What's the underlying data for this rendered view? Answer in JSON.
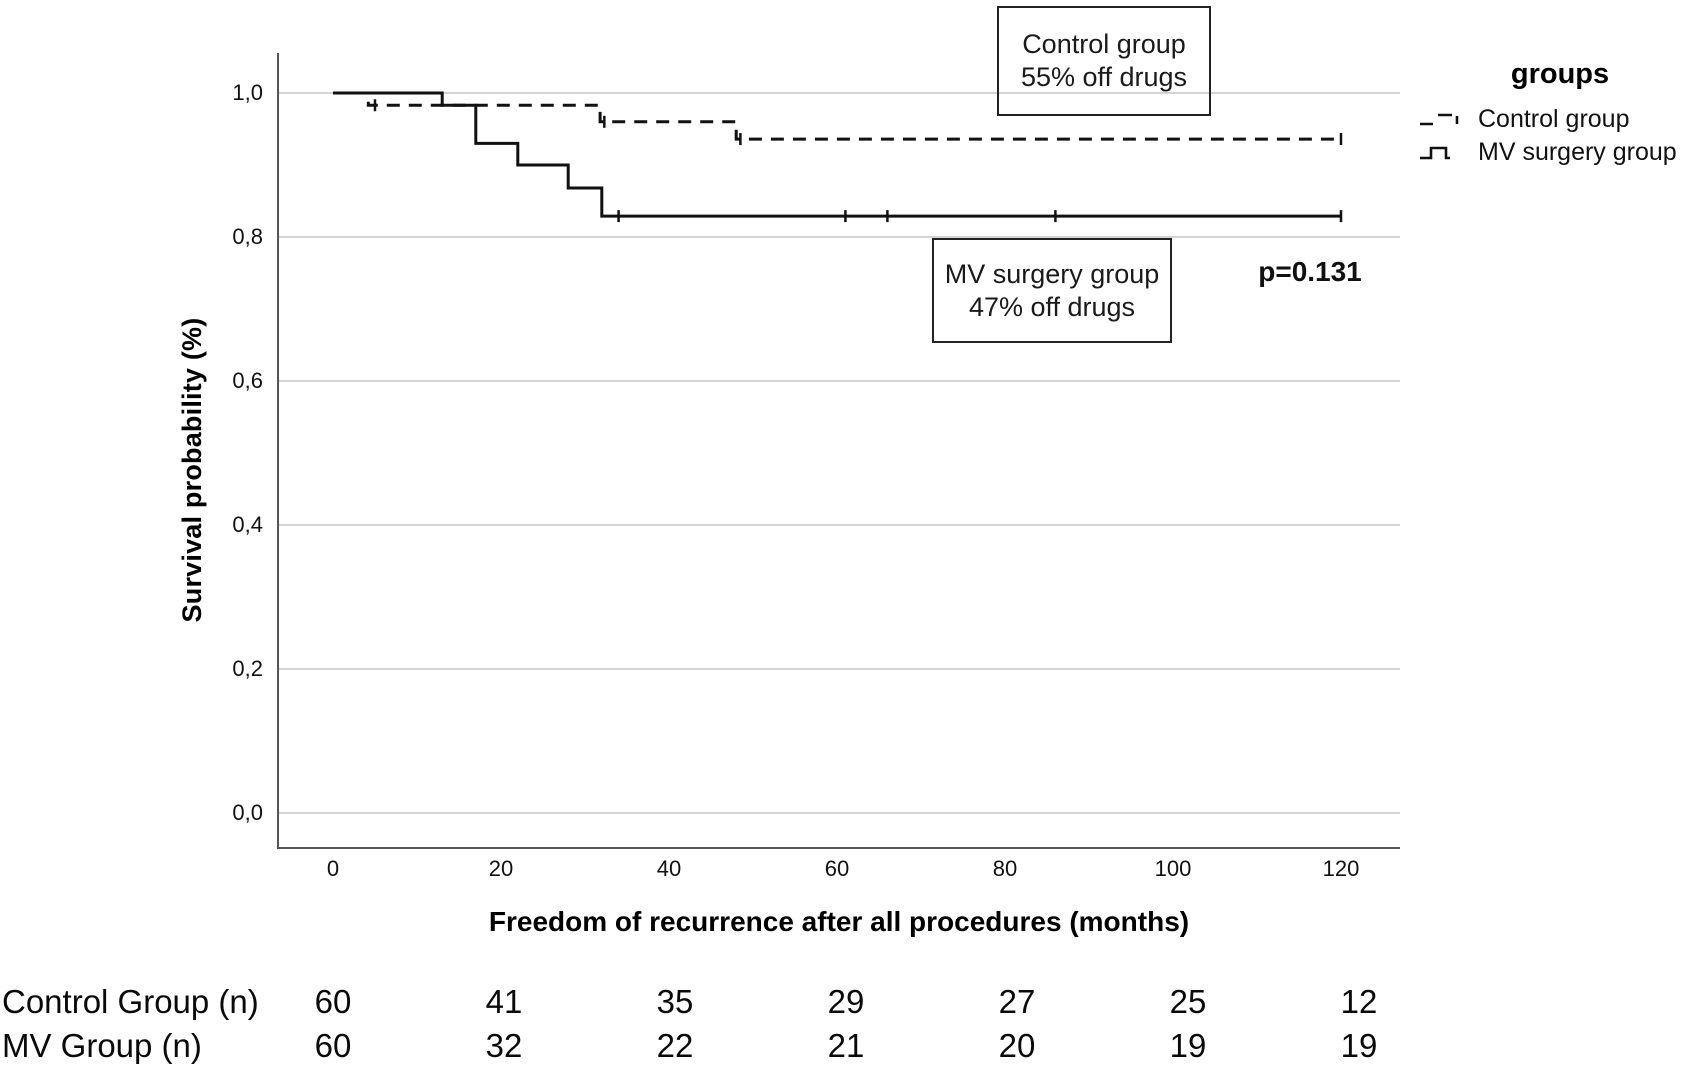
{
  "chart_data": {
    "type": "line",
    "subtype": "kaplan-meier-step",
    "title": "",
    "xlabel": "Freedom of recurrence after all procedures (months)",
    "ylabel": "Survival probability (%)",
    "xticks": [
      0,
      20,
      40,
      60,
      80,
      100,
      120
    ],
    "ytick_labels": [
      "0,0",
      "0,2",
      "0,4",
      "0,6",
      "0,8",
      "1,0"
    ],
    "ytick_values": [
      0,
      0.2,
      0.4,
      0.6,
      0.8,
      1.0
    ],
    "xlim": [
      -6.5,
      127
    ],
    "ylim": [
      -0.05,
      1.06
    ],
    "grid": true,
    "legend_position": "top-right-outside",
    "legend": {
      "title": "groups",
      "items": [
        {
          "label": "Control group",
          "line_style": "dashed"
        },
        {
          "label": "MV surgery group",
          "line_style": "solid"
        }
      ]
    },
    "series": [
      {
        "name": "Control group",
        "line_style": "dashed",
        "color": "#111111",
        "points": [
          [
            0,
            1.0
          ],
          [
            4.2,
            1.0
          ],
          [
            4.2,
            0.983
          ],
          [
            31.8,
            0.983
          ],
          [
            31.8,
            0.96
          ],
          [
            48,
            0.96
          ],
          [
            48,
            0.936
          ],
          [
            120,
            0.936
          ]
        ],
        "censor_marks": [
          [
            5,
            0.983
          ],
          [
            32.3,
            0.96
          ],
          [
            48.5,
            0.936
          ],
          [
            120,
            0.936
          ]
        ]
      },
      {
        "name": "MV surgery group",
        "line_style": "solid",
        "color": "#111111",
        "points": [
          [
            0,
            1.0
          ],
          [
            13,
            1.0
          ],
          [
            13,
            0.983
          ],
          [
            17,
            0.983
          ],
          [
            17,
            0.93
          ],
          [
            22,
            0.93
          ],
          [
            22,
            0.9
          ],
          [
            28,
            0.9
          ],
          [
            28,
            0.868
          ],
          [
            32,
            0.868
          ],
          [
            32,
            0.829
          ],
          [
            120,
            0.829
          ]
        ],
        "censor_marks": [
          [
            34,
            0.829
          ],
          [
            61,
            0.829
          ],
          [
            66,
            0.829
          ],
          [
            86,
            0.829
          ],
          [
            120,
            0.829
          ]
        ]
      }
    ],
    "annotation_boxes": [
      {
        "line1": "Control group",
        "line2": "55% off drugs"
      },
      {
        "line1": "MV surgery group",
        "line2": "47% off drugs"
      }
    ],
    "p_value_label": "p=0.131",
    "risk_table": {
      "column_months": [
        0,
        20,
        40,
        60,
        80,
        100,
        120
      ],
      "rows": [
        {
          "label": "Control Group (n)",
          "values": [
            60,
            41,
            35,
            29,
            27,
            25,
            12
          ]
        },
        {
          "label": "MV Group (n)",
          "values": [
            60,
            32,
            22,
            21,
            20,
            19,
            19
          ]
        }
      ]
    },
    "colors": {
      "curve": "#111111",
      "grid": "#c6c6c6",
      "axis": "#555555",
      "text": "#000000"
    }
  }
}
